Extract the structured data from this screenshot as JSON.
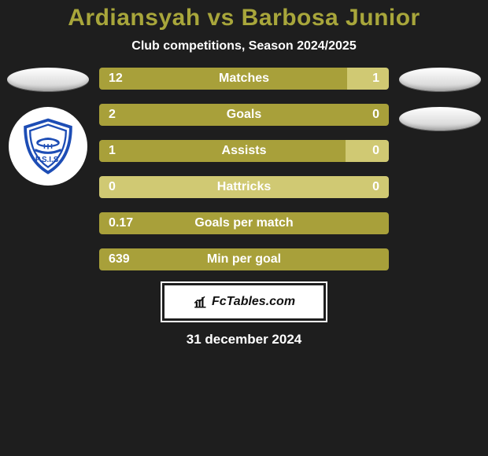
{
  "title": {
    "text": "Ardiansyah vs Barbosa Junior",
    "color": "#a8a63b",
    "fontsize": 30
  },
  "subtitle": {
    "text": "Club competitions, Season 2024/2025",
    "color": "#ffffff",
    "fontsize": 16
  },
  "colors": {
    "dark_olive": "#a8a03a",
    "light_olive": "#d0c973",
    "background": "#1e1e1e",
    "text": "#ffffff"
  },
  "bar_style": {
    "height": 28,
    "label_fontsize": 16,
    "value_fontsize": 16,
    "gap": 18
  },
  "stats": [
    {
      "label": "Matches",
      "left_value": "12",
      "right_value": "1",
      "left_pct": 71,
      "right_pct": 14.5,
      "mid_pct": 14.5
    },
    {
      "label": "Goals",
      "left_value": "2",
      "right_value": "0",
      "left_pct": 100,
      "right_pct": 0,
      "mid_pct": 0
    },
    {
      "label": "Assists",
      "left_value": "1",
      "right_value": "0",
      "left_pct": 85,
      "right_pct": 15,
      "mid_pct": 0
    },
    {
      "label": "Hattricks",
      "left_value": "0",
      "right_value": "0",
      "left_pct": 0,
      "right_pct": 0,
      "mid_pct": 100,
      "mid_variant": "light"
    },
    {
      "label": "Goals per match",
      "left_value": "0.17",
      "right_value": "",
      "left_pct": 100,
      "right_pct": 0,
      "mid_pct": 0
    },
    {
      "label": "Min per goal",
      "left_value": "639",
      "right_value": "",
      "left_pct": 100,
      "right_pct": 0,
      "mid_pct": 0
    }
  ],
  "footer": {
    "brand_prefix": "Fc",
    "brand_suffix": "Tables.com",
    "date": "31 december 2024",
    "date_fontsize": 17
  },
  "left_side": {
    "has_club_logo": true
  },
  "right_side": {
    "has_club_logo": false
  }
}
